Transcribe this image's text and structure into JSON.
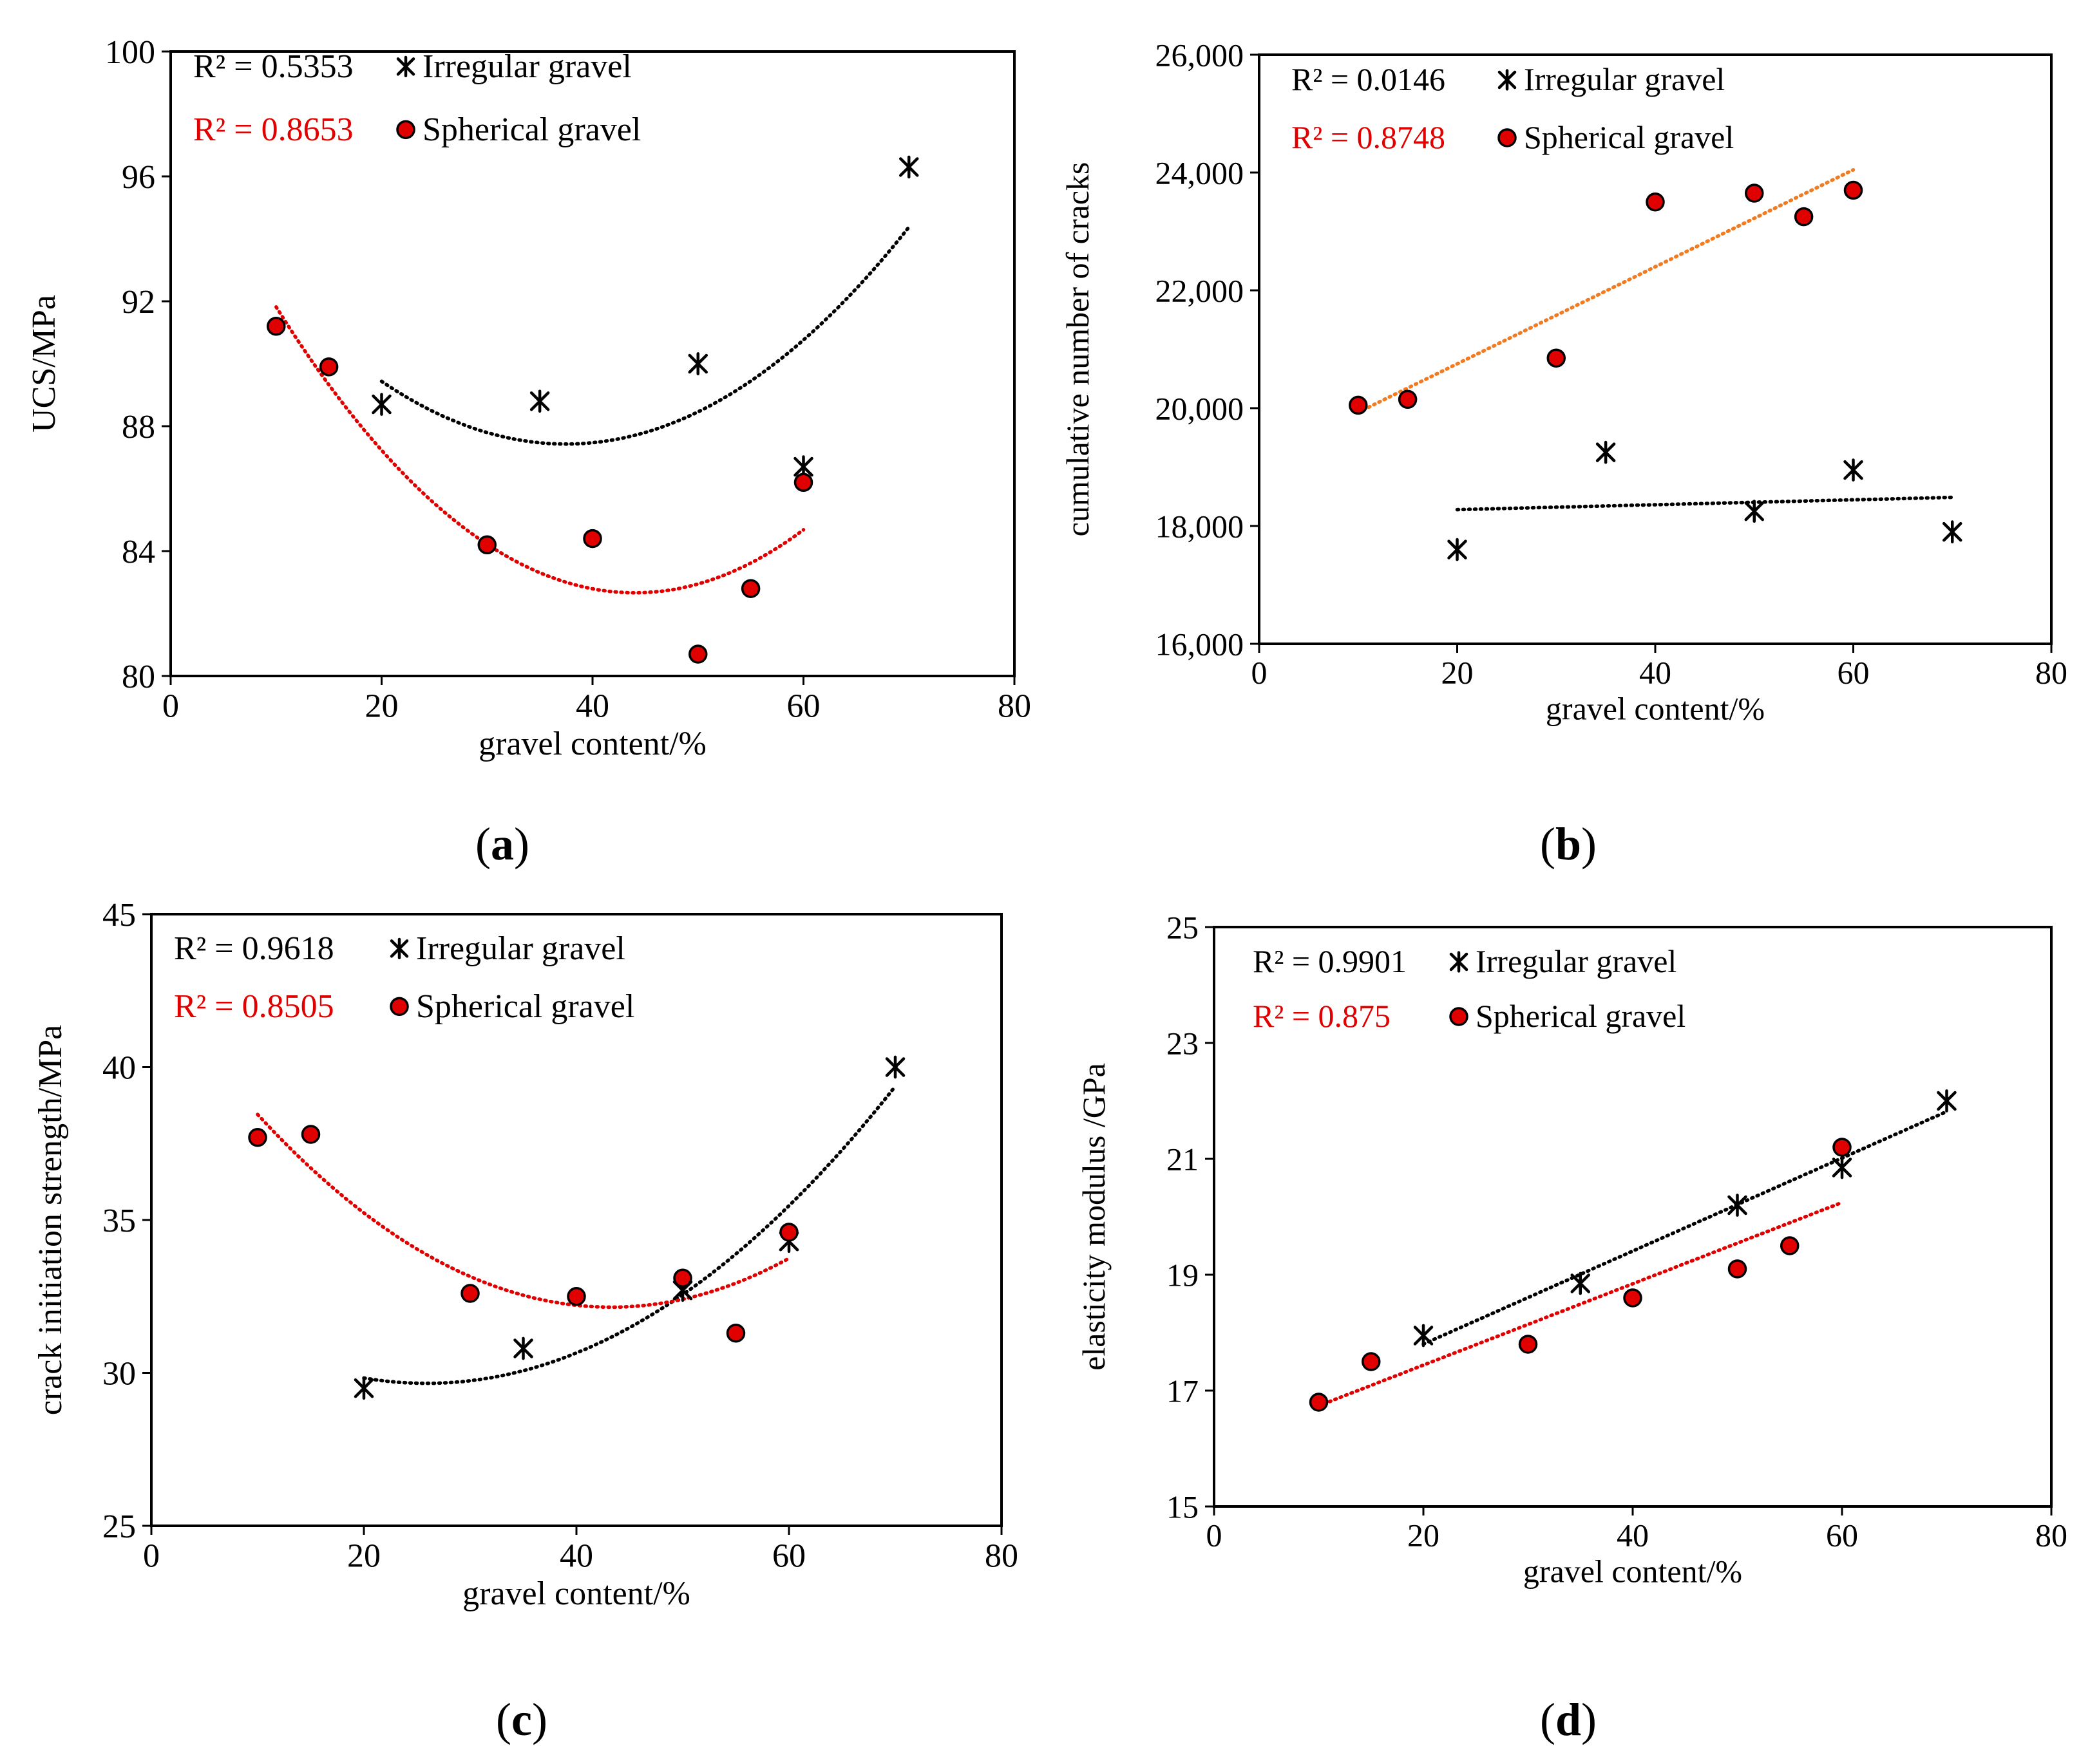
{
  "figure": {
    "panels": [
      {
        "label_open": "(",
        "label_letter": "a",
        "label_close": ")"
      },
      {
        "label_open": "(",
        "label_letter": "b",
        "label_close": ")"
      },
      {
        "label_open": "(",
        "label_letter": "c",
        "label_close": ")"
      },
      {
        "label_open": "(",
        "label_letter": "d",
        "label_close": ")"
      }
    ]
  },
  "colors": {
    "irregular_marker": "#000000",
    "spherical_fill": "#e00000",
    "spherical_stroke": "#000000",
    "trend_irregular": "#000000",
    "trend_spherical_red": "#e00000",
    "trend_spherical_orange": "#f07b20",
    "r2_spherical_text": "#e00000"
  },
  "chart_data": [
    {
      "type": "scatter",
      "panel": "a",
      "xlabel": "gravel content/%",
      "ylabel": "UCS/MPa",
      "xlim": [
        0,
        80
      ],
      "ylim": [
        80,
        100
      ],
      "xticks": [
        "0",
        "20",
        "40",
        "60",
        "80"
      ],
      "yticks": [
        "80",
        "84",
        "88",
        "92",
        "96",
        "100"
      ],
      "legend_position": "top-left",
      "series": [
        {
          "name": "Irregular gravel",
          "marker": "asterisk",
          "r2": "R² = 0.5353",
          "x": [
            20,
            35,
            50,
            60,
            70
          ],
          "y": [
            88.7,
            88.8,
            90.0,
            86.7,
            96.3
          ],
          "trendline": "poly2"
        },
        {
          "name": "Spherical gravel",
          "marker": "circle",
          "r2": "R² = 0.8653",
          "x": [
            10,
            15,
            30,
            40,
            50,
            55,
            60
          ],
          "y": [
            91.2,
            89.9,
            84.2,
            84.4,
            80.7,
            82.8,
            86.2
          ],
          "trendline": "poly2"
        }
      ]
    },
    {
      "type": "scatter",
      "panel": "b",
      "xlabel": "gravel content/%",
      "ylabel": "cumulative number of cracks",
      "xlim": [
        0,
        80
      ],
      "ylim": [
        16000,
        26000
      ],
      "xticks": [
        "0",
        "20",
        "40",
        "60",
        "80"
      ],
      "yticks": [
        "16,000",
        "18,000",
        "20,000",
        "22,000",
        "24,000",
        "26,000"
      ],
      "legend_position": "top-left",
      "series": [
        {
          "name": "Irregular gravel",
          "marker": "asterisk",
          "r2": "R² = 0.0146",
          "x": [
            20,
            35,
            50,
            60,
            70
          ],
          "y": [
            17600,
            19250,
            18250,
            18950,
            17900
          ],
          "trendline": "linear"
        },
        {
          "name": "Spherical gravel",
          "marker": "circle",
          "r2": "R² = 0.8748",
          "x": [
            10,
            15,
            30,
            40,
            50,
            55,
            60
          ],
          "y": [
            20050,
            20150,
            20850,
            23500,
            23650,
            23250,
            23700
          ],
          "trendline": "linear"
        }
      ]
    },
    {
      "type": "scatter",
      "panel": "c",
      "xlabel": "gravel content/%",
      "ylabel": "crack initiation strength/MPa",
      "xlim": [
        0,
        80
      ],
      "ylim": [
        25,
        45
      ],
      "xticks": [
        "0",
        "20",
        "40",
        "60",
        "80"
      ],
      "yticks": [
        "25",
        "30",
        "35",
        "40",
        "45"
      ],
      "legend_position": "top-left",
      "series": [
        {
          "name": "Irregular gravel",
          "marker": "asterisk",
          "r2": "R² = 0.9618",
          "x": [
            20,
            35,
            50,
            60,
            70
          ],
          "y": [
            29.5,
            30.8,
            32.7,
            34.3,
            40.0
          ],
          "trendline": "poly2"
        },
        {
          "name": "Spherical gravel",
          "marker": "circle",
          "r2": "R² = 0.8505",
          "x": [
            10,
            15,
            30,
            40,
            50,
            55,
            60
          ],
          "y": [
            37.7,
            37.8,
            32.6,
            32.5,
            33.1,
            31.3,
            34.6
          ],
          "trendline": "poly2"
        }
      ]
    },
    {
      "type": "scatter",
      "panel": "d",
      "xlabel": "gravel content/%",
      "ylabel": "elasticity modulus /GPa",
      "xlim": [
        0,
        80
      ],
      "ylim": [
        15,
        25
      ],
      "xticks": [
        "0",
        "20",
        "40",
        "60",
        "80"
      ],
      "yticks": [
        "15",
        "17",
        "19",
        "21",
        "23",
        "25"
      ],
      "legend_position": "top-left",
      "series": [
        {
          "name": "Irregular gravel",
          "marker": "asterisk",
          "r2": "R² = 0.9901",
          "x": [
            20,
            35,
            50,
            60,
            70
          ],
          "y": [
            17.95,
            18.85,
            20.2,
            20.85,
            22.0
          ],
          "trendline": "linear"
        },
        {
          "name": "Spherical gravel",
          "marker": "circle",
          "r2": "R² = 0.875",
          "x": [
            10,
            15,
            30,
            40,
            50,
            55,
            60
          ],
          "y": [
            16.8,
            17.5,
            17.8,
            18.6,
            19.1,
            19.5,
            21.2
          ],
          "trendline": "linear"
        }
      ]
    }
  ]
}
